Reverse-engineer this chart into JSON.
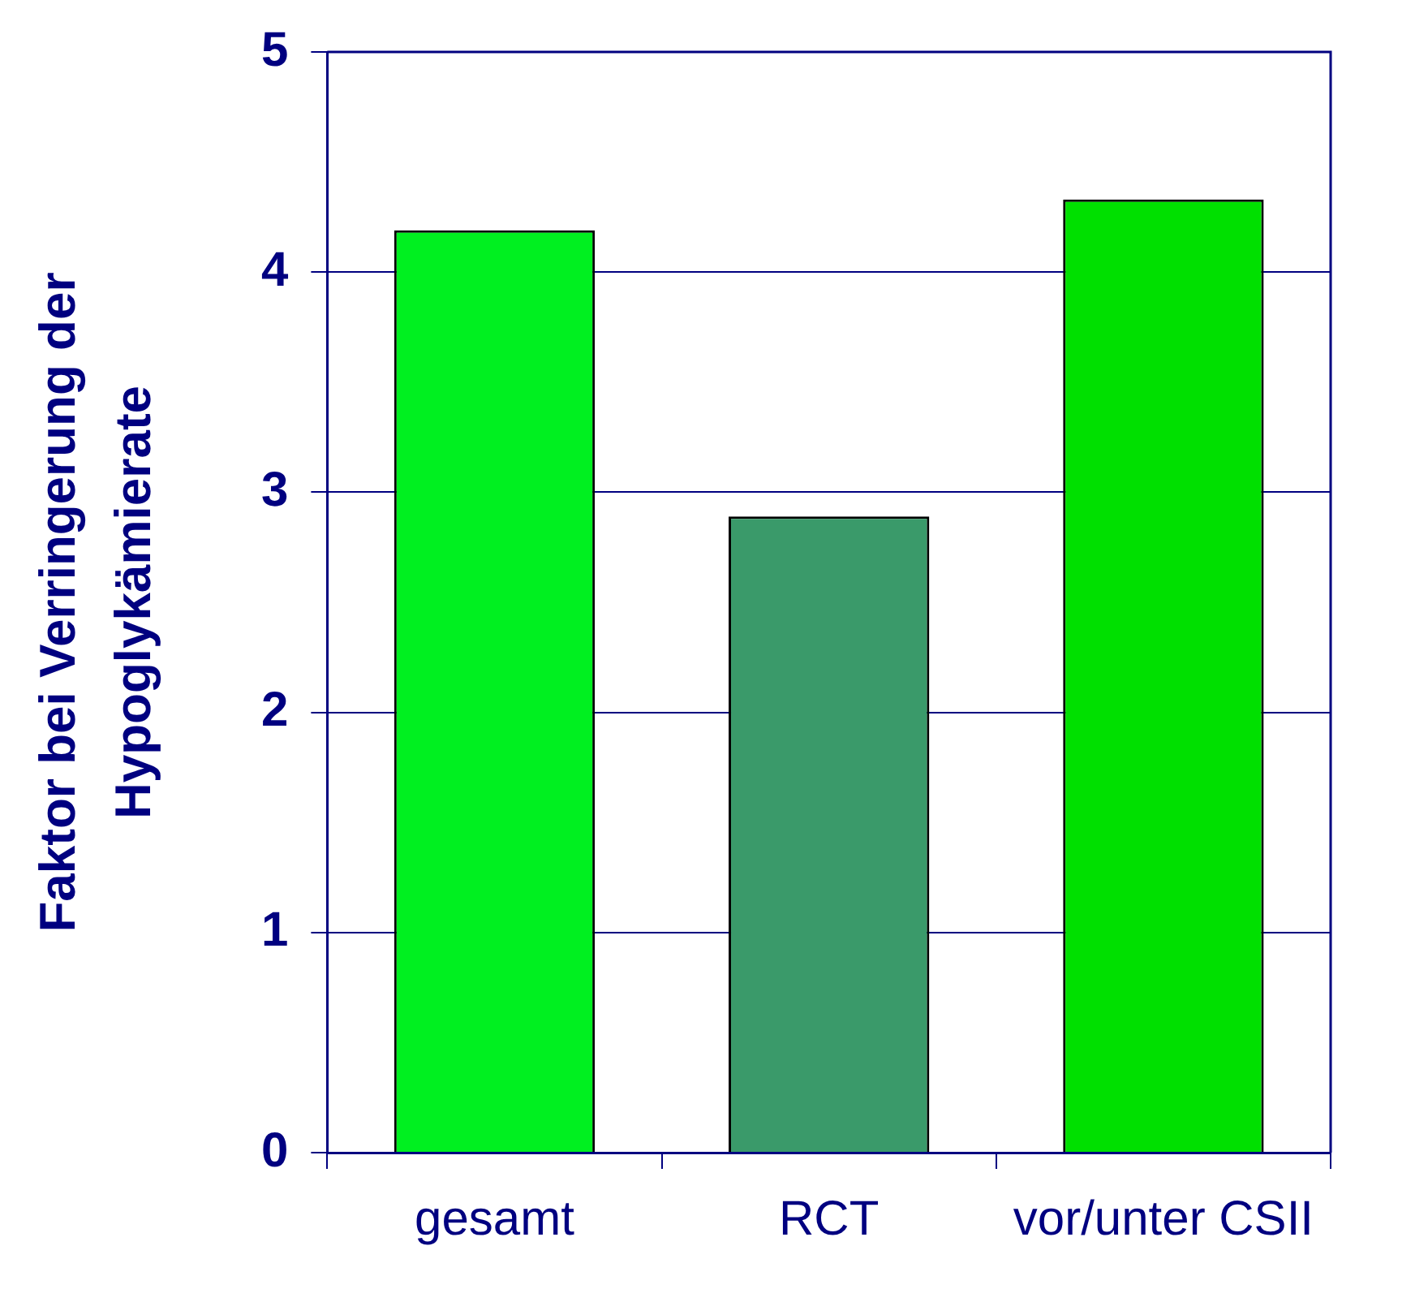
{
  "chart_data": {
    "type": "bar",
    "ylabel": "Faktor bei Verringerung der\nHypoglykämierate",
    "categories": [
      "gesamt",
      "RCT",
      "vor/unter CSII"
    ],
    "values": [
      4.19,
      2.89,
      4.33
    ],
    "colors": [
      "#00f020",
      "#3a9a6a",
      "#00e000"
    ],
    "ylim": [
      0,
      5
    ],
    "yticks": [
      0,
      1,
      2,
      3,
      4,
      5
    ],
    "grid": "y",
    "legend": false
  }
}
